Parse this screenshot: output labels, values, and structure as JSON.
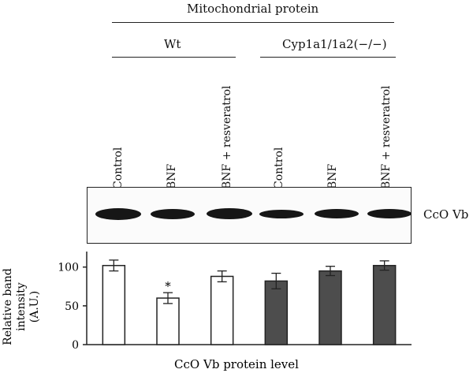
{
  "header": {
    "title": "Mitochondrial protein",
    "group_wt": "Wt",
    "group_ko": "Cyp1a1/1a2(−/−)"
  },
  "lanes": [
    "Control",
    "BNF",
    "BNF + resveratrol",
    "Control",
    "BNF",
    "BNF + resveratrol"
  ],
  "blot": {
    "label": "CcO Vb",
    "band_intensity": [
      1.0,
      0.8,
      0.85,
      0.75,
      0.8,
      0.8
    ]
  },
  "chart_data": {
    "type": "bar",
    "categories": [
      "Control",
      "BNF",
      "BNF + resveratrol",
      "Control",
      "BNF",
      "BNF + resveratrol"
    ],
    "groups": [
      "Wt",
      "Wt",
      "Wt",
      "Cyp1a1/1a2(−/−)",
      "Cyp1a1/1a2(−/−)",
      "Cyp1a1/1a2(−/−)"
    ],
    "values": [
      102,
      60,
      88,
      82,
      95,
      102
    ],
    "errors": [
      7,
      7,
      7,
      10,
      6,
      6
    ],
    "fills": [
      "#ffffff",
      "#ffffff",
      "#ffffff",
      "#4d4d4d",
      "#4d4d4d",
      "#4d4d4d"
    ],
    "significance": [
      "",
      "*",
      "",
      "",
      "",
      ""
    ],
    "ylabel_line1": "Relative band",
    "ylabel_line2": "intensity",
    "ylabel_line3": "(A.U.)",
    "xlabel": "CcO Vb protein level",
    "ylim": [
      0,
      120
    ],
    "yticks": [
      0,
      50,
      100
    ]
  }
}
